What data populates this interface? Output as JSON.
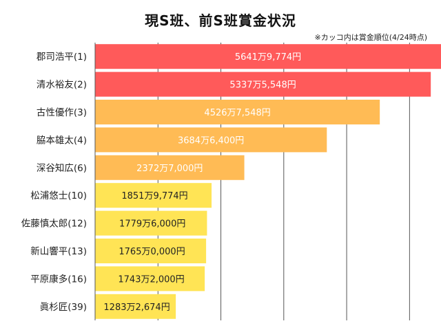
{
  "chart_data": {
    "type": "bar",
    "orientation": "horizontal",
    "title": "現S班、前S班賞金状況",
    "subtitle": "※カッコ内は賞金順位(4/24時点)",
    "categories": [
      "郡司浩平(1)",
      "清水裕友(2)",
      "古性優作(3)",
      "脇本雄太(4)",
      "深谷知広(6)",
      "松浦悠士(10)",
      "佐藤慎太郎(12)",
      "新山響平(13)",
      "平原康多(16)",
      "眞杉匠(39)"
    ],
    "values": [
      56419774,
      53375548,
      45267548,
      36846400,
      23727000,
      18519774,
      17796000,
      17650000,
      17432000,
      12832674
    ],
    "data_labels": [
      "5641万9,774円",
      "5337万5,548円",
      "4526万7,548円",
      "3684万6,400円",
      "2372万7,000円",
      "1851万9,774円",
      "1779万6,000円",
      "1765万0,000円",
      "1743万2,000円",
      "1283万2,674円"
    ],
    "xlim": [
      0,
      55000000
    ],
    "grid": true,
    "colors": {
      "red": "#ff5a5a",
      "orange": "#ffbb55",
      "yellow": "#ffe455",
      "label_light": "#ffffff",
      "label_dark": "#222222",
      "grid": "#555555"
    },
    "bar_colors": [
      "red",
      "red",
      "orange",
      "orange",
      "orange",
      "yellow",
      "yellow",
      "yellow",
      "yellow",
      "yellow"
    ]
  }
}
